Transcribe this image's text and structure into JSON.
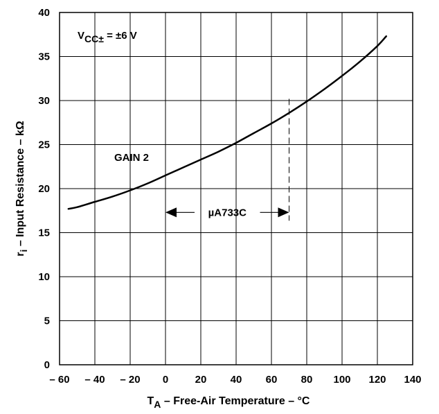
{
  "chart_data": {
    "type": "line",
    "xlabel": {
      "main": "T",
      "sub": "A",
      "rest": " – Free-Air Temperature – °C"
    },
    "ylabel": {
      "main": "r",
      "sub": "i",
      "rest": " – Input Resistance – kΩ"
    },
    "xlim": [
      -60,
      140
    ],
    "ylim": [
      0,
      40
    ],
    "xticks": [
      -60,
      -40,
      -20,
      0,
      20,
      40,
      60,
      80,
      100,
      120,
      140
    ],
    "xtick_labels": [
      "– 60",
      "– 40",
      "– 20",
      "0",
      "20",
      "40",
      "60",
      "80",
      "100",
      "120",
      "140"
    ],
    "yticks": [
      0,
      5,
      10,
      15,
      20,
      25,
      30,
      35,
      40
    ],
    "ytick_labels": [
      "0",
      "5",
      "10",
      "15",
      "20",
      "25",
      "30",
      "35",
      "40"
    ],
    "grid": true,
    "series": [
      {
        "name": "GAIN 2",
        "x": [
          -55,
          -50,
          -40,
          -30,
          -20,
          -10,
          0,
          10,
          20,
          30,
          40,
          50,
          60,
          70,
          80,
          90,
          100,
          110,
          120,
          125
        ],
        "y": [
          17.7,
          17.9,
          18.5,
          19.1,
          19.8,
          20.6,
          21.5,
          22.4,
          23.3,
          24.2,
          25.2,
          26.3,
          27.4,
          28.6,
          29.9,
          31.3,
          32.8,
          34.4,
          36.2,
          37.3
        ]
      }
    ],
    "annotations": {
      "condition": {
        "main": "V",
        "sub": "CC±",
        "rest": "  = ±6 V"
      },
      "series_label": "GAIN 2",
      "range_label": "µA733C",
      "range_x": [
        0,
        70
      ],
      "range_y": 17.3,
      "dashed_x": 70,
      "dashed_top_y": 30.2
    }
  }
}
